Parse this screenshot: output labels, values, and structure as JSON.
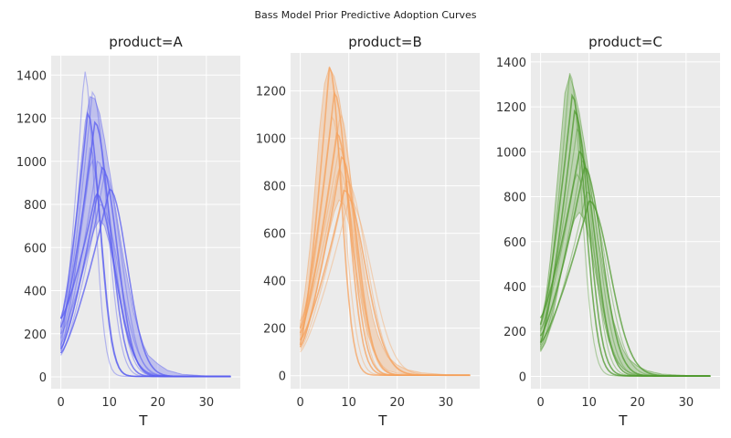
{
  "figure": {
    "title": "Bass Model Prior Predictive Adoption Curves"
  },
  "chart_data": [
    {
      "type": "line",
      "title": "product=A",
      "xlabel": "T",
      "ylabel": "",
      "xlim": [
        -2,
        37
      ],
      "ylim": [
        -55,
        1490
      ],
      "xticks": [
        0,
        10,
        20,
        30
      ],
      "yticks": [
        0,
        200,
        400,
        600,
        800,
        1000,
        1200,
        1400
      ],
      "grid": true,
      "color": "#5a5ef0",
      "band_upper_samples": [
        [
          0,
          250
        ],
        [
          1,
          360
        ],
        [
          2,
          480
        ],
        [
          3,
          700
        ],
        [
          4,
          950
        ],
        [
          5,
          1180
        ],
        [
          6,
          1300
        ],
        [
          7,
          1290
        ],
        [
          8,
          1220
        ],
        [
          9,
          1100
        ],
        [
          10,
          960
        ],
        [
          11,
          820
        ],
        [
          12,
          680
        ],
        [
          13,
          540
        ],
        [
          14,
          420
        ],
        [
          15,
          300
        ],
        [
          16,
          220
        ],
        [
          17,
          150
        ],
        [
          18,
          100
        ],
        [
          19,
          80
        ],
        [
          20,
          60
        ],
        [
          22,
          30
        ],
        [
          25,
          12
        ],
        [
          30,
          4
        ],
        [
          35,
          2
        ]
      ],
      "band_lower_samples": [
        [
          0,
          120
        ],
        [
          1,
          180
        ],
        [
          2,
          250
        ],
        [
          3,
          340
        ],
        [
          4,
          440
        ],
        [
          5,
          540
        ],
        [
          6,
          620
        ],
        [
          7,
          690
        ],
        [
          8,
          730
        ],
        [
          9,
          700
        ],
        [
          10,
          620
        ],
        [
          11,
          500
        ],
        [
          12,
          370
        ],
        [
          13,
          250
        ],
        [
          14,
          160
        ],
        [
          15,
          100
        ],
        [
          16,
          60
        ],
        [
          17,
          35
        ],
        [
          18,
          20
        ],
        [
          20,
          8
        ],
        [
          25,
          2
        ],
        [
          30,
          0
        ],
        [
          35,
          0
        ]
      ],
      "series_peaks": [
        {
          "peak_t": 4.8,
          "peak": 1420,
          "start": 140,
          "width": 2.2,
          "emphasis": 0
        },
        {
          "peak_t": 5.5,
          "peak": 1220,
          "start": 270,
          "width": 2.6,
          "emphasis": 1
        },
        {
          "peak_t": 6.5,
          "peak": 1320,
          "start": 200,
          "width": 3.0,
          "emphasis": 0
        },
        {
          "peak_t": 6.0,
          "peak": 1060,
          "start": 110,
          "width": 2.5,
          "emphasis": 0
        },
        {
          "peak_t": 7.0,
          "peak": 1180,
          "start": 230,
          "width": 3.2,
          "emphasis": 1
        },
        {
          "peak_t": 7.5,
          "peak": 1000,
          "start": 150,
          "width": 3.5,
          "emphasis": 0
        },
        {
          "peak_t": 8.5,
          "peak": 970,
          "start": 130,
          "width": 3.3,
          "emphasis": 1
        },
        {
          "peak_t": 9.0,
          "peak": 940,
          "start": 100,
          "width": 3.6,
          "emphasis": 0
        },
        {
          "peak_t": 7.2,
          "peak": 850,
          "start": 270,
          "width": 4.0,
          "emphasis": 1
        },
        {
          "peak_t": 8.0,
          "peak": 800,
          "start": 200,
          "width": 4.2,
          "emphasis": 0
        },
        {
          "peak_t": 10.0,
          "peak": 870,
          "start": 110,
          "width": 3.8,
          "emphasis": 1
        },
        {
          "peak_t": 6.2,
          "peak": 1010,
          "start": 180,
          "width": 2.4,
          "emphasis": 0
        }
      ]
    },
    {
      "type": "line",
      "title": "product=B",
      "xlabel": "T",
      "ylabel": "",
      "xlim": [
        -2,
        37
      ],
      "ylim": [
        -55,
        1360
      ],
      "xticks": [
        0,
        10,
        20,
        30
      ],
      "yticks": [
        0,
        200,
        400,
        600,
        800,
        1000,
        1200
      ],
      "grid": true,
      "color": "#f5a25d",
      "band_upper_samples": [
        [
          0,
          220
        ],
        [
          1,
          360
        ],
        [
          2,
          540
        ],
        [
          3,
          780
        ],
        [
          4,
          1040
        ],
        [
          5,
          1230
        ],
        [
          6,
          1300
        ],
        [
          7,
          1260
        ],
        [
          8,
          1170
        ],
        [
          9,
          1040
        ],
        [
          10,
          890
        ],
        [
          11,
          740
        ],
        [
          12,
          590
        ],
        [
          13,
          460
        ],
        [
          14,
          340
        ],
        [
          15,
          240
        ],
        [
          16,
          170
        ],
        [
          17,
          120
        ],
        [
          18,
          80
        ],
        [
          20,
          45
        ],
        [
          22,
          25
        ],
        [
          25,
          12
        ],
        [
          30,
          4
        ],
        [
          35,
          2
        ]
      ],
      "band_lower_samples": [
        [
          0,
          120
        ],
        [
          1,
          160
        ],
        [
          2,
          230
        ],
        [
          3,
          320
        ],
        [
          4,
          420
        ],
        [
          5,
          520
        ],
        [
          6,
          610
        ],
        [
          7,
          690
        ],
        [
          8,
          740
        ],
        [
          9,
          720
        ],
        [
          10,
          640
        ],
        [
          11,
          510
        ],
        [
          12,
          380
        ],
        [
          13,
          260
        ],
        [
          14,
          170
        ],
        [
          15,
          110
        ],
        [
          16,
          70
        ],
        [
          17,
          40
        ],
        [
          18,
          22
        ],
        [
          20,
          10
        ],
        [
          25,
          2
        ],
        [
          30,
          0
        ],
        [
          35,
          0
        ]
      ],
      "series_peaks": [
        {
          "peak_t": 6.0,
          "peak": 1300,
          "start": 130,
          "width": 2.5,
          "emphasis": 1
        },
        {
          "peak_t": 7.0,
          "peak": 1190,
          "start": 200,
          "width": 3.0,
          "emphasis": 1
        },
        {
          "peak_t": 6.5,
          "peak": 1090,
          "start": 150,
          "width": 2.8,
          "emphasis": 0
        },
        {
          "peak_t": 7.5,
          "peak": 1020,
          "start": 180,
          "width": 3.2,
          "emphasis": 1
        },
        {
          "peak_t": 8.0,
          "peak": 960,
          "start": 230,
          "width": 3.5,
          "emphasis": 0
        },
        {
          "peak_t": 8.5,
          "peak": 920,
          "start": 120,
          "width": 3.4,
          "emphasis": 1
        },
        {
          "peak_t": 7.8,
          "peak": 870,
          "start": 200,
          "width": 3.8,
          "emphasis": 0
        },
        {
          "peak_t": 9.5,
          "peak": 820,
          "start": 110,
          "width": 4.3,
          "emphasis": 0
        },
        {
          "peak_t": 9.0,
          "peak": 780,
          "start": 150,
          "width": 4.5,
          "emphasis": 1
        },
        {
          "peak_t": 10.0,
          "peak": 740,
          "start": 100,
          "width": 4.8,
          "emphasis": 0
        },
        {
          "peak_t": 8.2,
          "peak": 1100,
          "start": 170,
          "width": 3.0,
          "emphasis": 0
        }
      ]
    },
    {
      "type": "line",
      "title": "product=C",
      "xlabel": "T",
      "ylabel": "",
      "xlim": [
        -2,
        37
      ],
      "ylim": [
        -55,
        1440
      ],
      "xticks": [
        0,
        10,
        20,
        30
      ],
      "yticks": [
        0,
        200,
        400,
        600,
        800,
        1000,
        1200,
        1400
      ],
      "grid": true,
      "color": "#4f9a2f",
      "band_upper_samples": [
        [
          0,
          240
        ],
        [
          1,
          340
        ],
        [
          2,
          520
        ],
        [
          3,
          760
        ],
        [
          4,
          1000
        ],
        [
          5,
          1260
        ],
        [
          6,
          1340
        ],
        [
          7,
          1270
        ],
        [
          8,
          1170
        ],
        [
          9,
          1040
        ],
        [
          10,
          900
        ],
        [
          11,
          750
        ],
        [
          12,
          600
        ],
        [
          13,
          470
        ],
        [
          14,
          350
        ],
        [
          15,
          250
        ],
        [
          16,
          180
        ],
        [
          17,
          120
        ],
        [
          18,
          80
        ],
        [
          20,
          45
        ],
        [
          22,
          25
        ],
        [
          25,
          10
        ],
        [
          30,
          4
        ],
        [
          35,
          2
        ]
      ],
      "band_lower_samples": [
        [
          0,
          110
        ],
        [
          1,
          150
        ],
        [
          2,
          220
        ],
        [
          3,
          320
        ],
        [
          4,
          430
        ],
        [
          5,
          540
        ],
        [
          6,
          630
        ],
        [
          7,
          700
        ],
        [
          8,
          730
        ],
        [
          9,
          700
        ],
        [
          10,
          620
        ],
        [
          11,
          500
        ],
        [
          12,
          370
        ],
        [
          13,
          250
        ],
        [
          14,
          160
        ],
        [
          15,
          100
        ],
        [
          16,
          60
        ],
        [
          17,
          35
        ],
        [
          18,
          20
        ],
        [
          20,
          8
        ],
        [
          25,
          2
        ],
        [
          30,
          0
        ],
        [
          35,
          0
        ]
      ],
      "series_peaks": [
        {
          "peak_t": 6.0,
          "peak": 1350,
          "start": 140,
          "width": 2.5,
          "emphasis": 0
        },
        {
          "peak_t": 6.5,
          "peak": 1250,
          "start": 230,
          "width": 2.8,
          "emphasis": 1
        },
        {
          "peak_t": 7.0,
          "peak": 1180,
          "start": 150,
          "width": 3.0,
          "emphasis": 1
        },
        {
          "peak_t": 7.5,
          "peak": 1100,
          "start": 200,
          "width": 3.2,
          "emphasis": 0
        },
        {
          "peak_t": 8.0,
          "peak": 1000,
          "start": 260,
          "width": 3.4,
          "emphasis": 1
        },
        {
          "peak_t": 8.5,
          "peak": 960,
          "start": 130,
          "width": 3.6,
          "emphasis": 0
        },
        {
          "peak_t": 9.0,
          "peak": 930,
          "start": 180,
          "width": 3.8,
          "emphasis": 1
        },
        {
          "peak_t": 7.2,
          "peak": 900,
          "start": 210,
          "width": 4.0,
          "emphasis": 0
        },
        {
          "peak_t": 9.5,
          "peak": 820,
          "start": 120,
          "width": 4.2,
          "emphasis": 0
        },
        {
          "peak_t": 10.0,
          "peak": 780,
          "start": 150,
          "width": 4.5,
          "emphasis": 1
        }
      ]
    }
  ]
}
